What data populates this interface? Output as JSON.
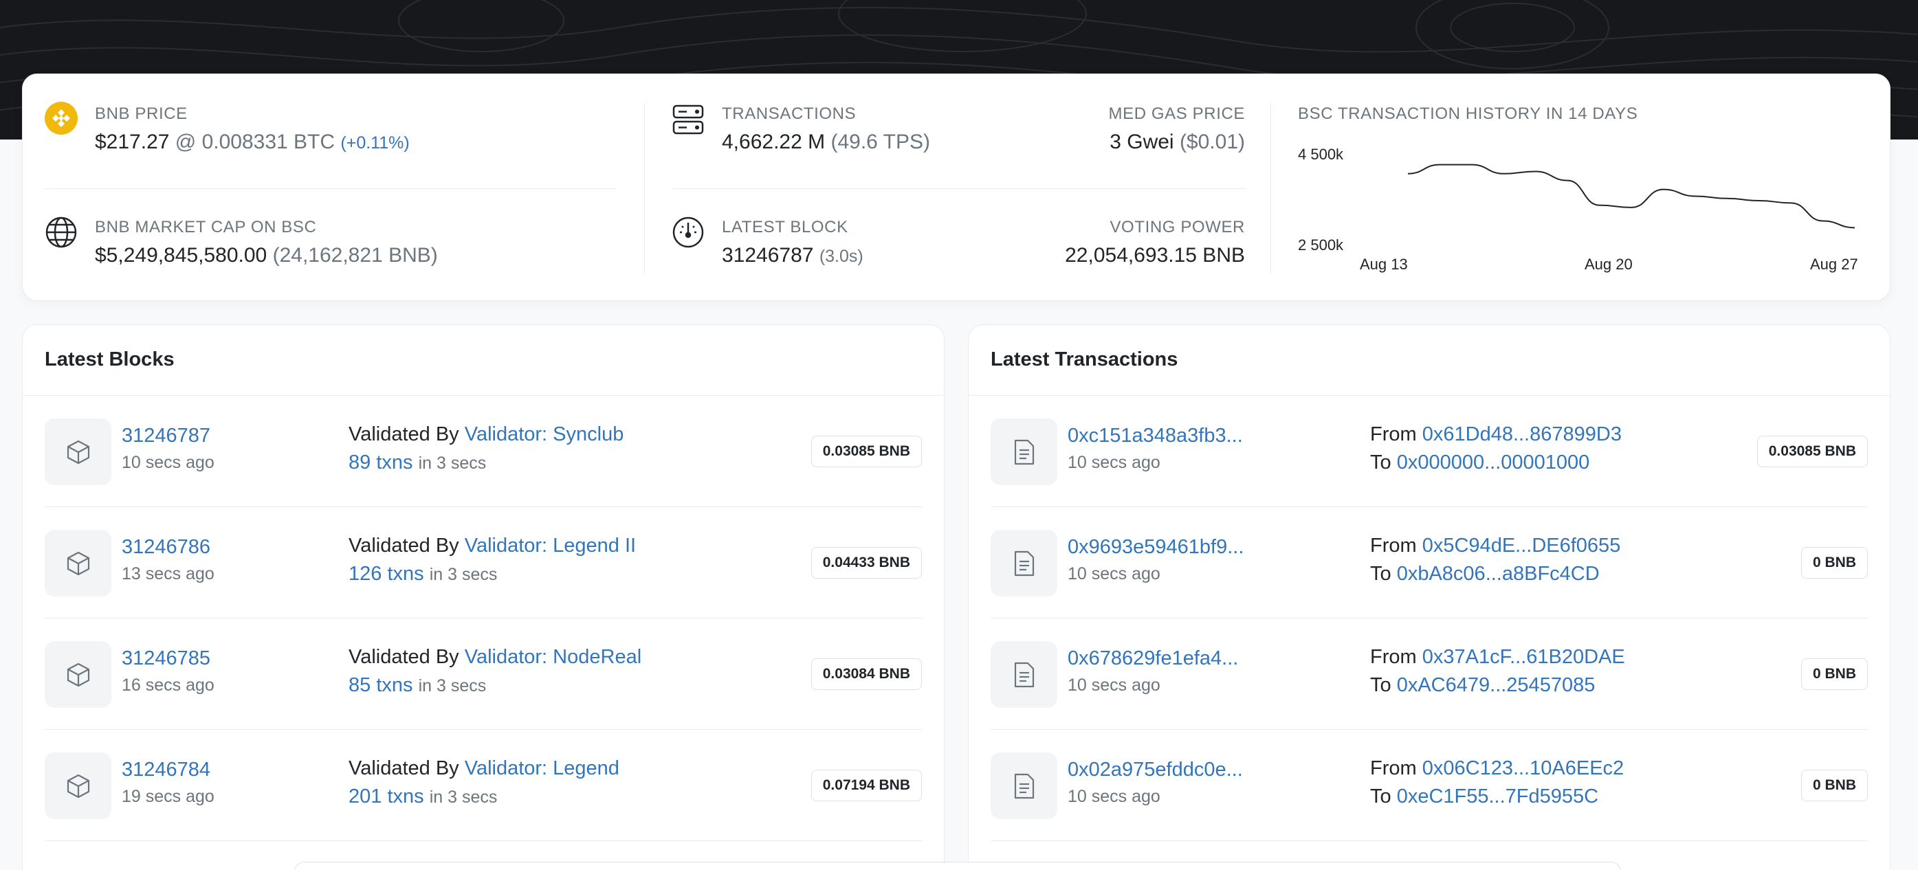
{
  "stats": {
    "bnb_price": {
      "label": "BNB PRICE",
      "usd": "$217.27",
      "btc": "@ 0.008331 BTC",
      "change": "(+0.11%)"
    },
    "market_cap": {
      "label": "BNB MARKET CAP ON BSC",
      "usd": "$5,249,845,580.00",
      "bnb": "(24,162,821 BNB)"
    },
    "transactions": {
      "label": "TRANSACTIONS",
      "value": "4,662.22 M",
      "tps": "(49.6 TPS)"
    },
    "gas": {
      "label": "MED GAS PRICE",
      "value": "3 Gwei",
      "usd": "($0.01)"
    },
    "latest_block": {
      "label": "LATEST BLOCK",
      "value": "31246787",
      "time": "(3.0s)"
    },
    "voting_power": {
      "label": "VOTING POWER",
      "value": "22,054,693.15 BNB"
    }
  },
  "chart_data": {
    "type": "line",
    "title": "BSC TRANSACTION HISTORY IN 14 DAYS",
    "x": [
      "Aug 13",
      "Aug 14",
      "Aug 15",
      "Aug 16",
      "Aug 17",
      "Aug 18",
      "Aug 19",
      "Aug 20",
      "Aug 21",
      "Aug 22",
      "Aug 23",
      "Aug 24",
      "Aug 25",
      "Aug 26",
      "Aug 27"
    ],
    "x_tick_labels": [
      "Aug 13",
      "Aug 20",
      "Aug 27"
    ],
    "y_tick_labels": [
      "4 500k",
      "2 500k"
    ],
    "values": [
      4000000,
      4200000,
      4200000,
      4000000,
      4050000,
      3850000,
      3300000,
      3250000,
      3650000,
      3500000,
      3450000,
      3400000,
      3350000,
      2950000,
      2800000
    ],
    "ylim": [
      2500000,
      4500000
    ],
    "grid": false,
    "color": "#212529"
  },
  "blocks": {
    "title": "Latest Blocks",
    "validated_by": "Validated By",
    "in_label": "in 3 secs",
    "items": [
      {
        "number": "31246787",
        "age": "10 secs ago",
        "validator": "Validator: Synclub",
        "txns": "89 txns",
        "reward": "0.03085 BNB"
      },
      {
        "number": "31246786",
        "age": "13 secs ago",
        "validator": "Validator: Legend II",
        "txns": "126 txns",
        "reward": "0.04433 BNB"
      },
      {
        "number": "31246785",
        "age": "16 secs ago",
        "validator": "Validator: NodeReal",
        "txns": "85 txns",
        "reward": "0.03084 BNB"
      },
      {
        "number": "31246784",
        "age": "19 secs ago",
        "validator": "Validator: Legend",
        "txns": "201 txns",
        "reward": "0.07194 BNB"
      }
    ]
  },
  "transactions": {
    "title": "Latest Transactions",
    "from_label": "From",
    "to_label": "To",
    "items": [
      {
        "hash": "0xc151a348a3fb3...",
        "age": "10 secs ago",
        "from": "0x61Dd48...867899D3",
        "to": "0x000000...00001000",
        "value": "0.03085 BNB"
      },
      {
        "hash": "0x9693e59461bf9...",
        "age": "10 secs ago",
        "from": "0x5C94dE...DE6f0655",
        "to": "0xbA8c06...a8BFc4CD",
        "value": "0 BNB"
      },
      {
        "hash": "0x678629fe1efa4...",
        "age": "10 secs ago",
        "from": "0x37A1cF...61B20DAE",
        "to": "0xAC6479...25457085",
        "value": "0 BNB"
      },
      {
        "hash": "0x02a975efddc0e...",
        "age": "10 secs ago",
        "from": "0x06C123...10A6EEc2",
        "to": "0xeC1F55...7Fd5955C",
        "value": "0 BNB"
      }
    ]
  },
  "colors": {
    "accent": "#3375bb",
    "bnb_yellow": "#f0b90b",
    "hero_bg": "#17181b"
  }
}
